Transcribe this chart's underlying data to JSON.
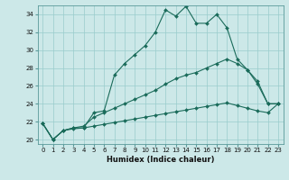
{
  "xlabel": "Humidex (Indice chaleur)",
  "background_color": "#cce8e8",
  "grid_color": "#99cccc",
  "line_color": "#1a6b5a",
  "xlim": [
    -0.5,
    23.5
  ],
  "ylim": [
    19.5,
    35.0
  ],
  "yticks": [
    20,
    22,
    24,
    26,
    28,
    30,
    32,
    34
  ],
  "xticks": [
    0,
    1,
    2,
    3,
    4,
    5,
    6,
    7,
    8,
    9,
    10,
    11,
    12,
    13,
    14,
    15,
    16,
    17,
    18,
    19,
    20,
    21,
    22,
    23
  ],
  "series1_x": [
    0,
    1,
    2,
    3,
    4,
    5,
    6,
    7,
    8,
    9,
    10,
    11,
    12,
    13,
    14,
    15,
    16,
    17,
    18,
    19,
    20,
    21,
    22,
    23
  ],
  "series1_y": [
    21.8,
    20.0,
    21.0,
    21.3,
    21.3,
    23.0,
    23.2,
    27.2,
    28.5,
    29.5,
    30.5,
    32.0,
    34.5,
    33.8,
    34.9,
    33.0,
    33.0,
    34.0,
    32.5,
    29.0,
    27.8,
    26.2,
    24.0,
    24.0
  ],
  "series2_x": [
    0,
    1,
    2,
    3,
    4,
    5,
    6,
    7,
    8,
    9,
    10,
    11,
    12,
    13,
    14,
    15,
    16,
    17,
    18,
    19,
    20,
    21,
    22,
    23
  ],
  "series2_y": [
    21.8,
    20.0,
    21.0,
    21.3,
    21.5,
    22.5,
    23.0,
    23.5,
    24.0,
    24.5,
    25.0,
    25.5,
    26.2,
    26.8,
    27.2,
    27.5,
    28.0,
    28.5,
    29.0,
    28.5,
    27.8,
    26.5,
    24.0,
    24.0
  ],
  "series3_x": [
    0,
    1,
    2,
    3,
    4,
    5,
    6,
    7,
    8,
    9,
    10,
    11,
    12,
    13,
    14,
    15,
    16,
    17,
    18,
    19,
    20,
    21,
    22,
    23
  ],
  "series3_y": [
    21.8,
    20.0,
    21.0,
    21.2,
    21.3,
    21.5,
    21.7,
    21.9,
    22.1,
    22.3,
    22.5,
    22.7,
    22.9,
    23.1,
    23.3,
    23.5,
    23.7,
    23.9,
    24.1,
    23.8,
    23.5,
    23.2,
    23.0,
    24.0
  ],
  "tick_fontsize": 5.0,
  "xlabel_fontsize": 6.0
}
